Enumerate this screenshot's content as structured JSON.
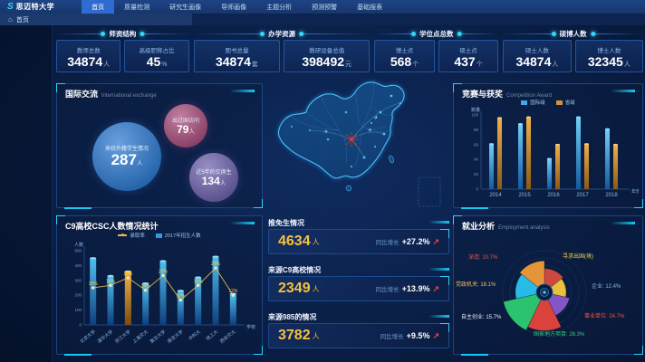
{
  "navbar": {
    "logo": "思迈特大学",
    "tabs": [
      {
        "label": "首页",
        "active": true
      },
      {
        "label": "质量检测",
        "active": false
      },
      {
        "label": "研究生画像",
        "active": false
      },
      {
        "label": "导师画像",
        "active": false
      },
      {
        "label": "主题分析",
        "active": false
      },
      {
        "label": "预测预警",
        "active": false
      },
      {
        "label": "基础报表",
        "active": false
      }
    ]
  },
  "breadcrumb": {
    "home": "首页"
  },
  "icons": {
    "home": "⌂",
    "logo": "S",
    "growth_up": "↗",
    "plane": "✈"
  },
  "colors": {
    "accent_cyan": "#19c8f0",
    "value_yellow": "#f7c23e",
    "alert_red": "#f0453c"
  },
  "kpi_groups": [
    {
      "title": "师资结构",
      "stats": [
        {
          "label": "教师总数",
          "value": "34874",
          "unit": "人"
        },
        {
          "label": "高级职称占比",
          "value": "45",
          "unit": "%"
        }
      ]
    },
    {
      "title": "办学资源",
      "stats": [
        {
          "label": "图书总量",
          "value": "34874",
          "unit": "套"
        },
        {
          "label": "教研设备总值",
          "value": "398492",
          "unit": "元"
        }
      ]
    },
    {
      "title": "学位点总数",
      "stats": [
        {
          "label": "博士点",
          "value": "568",
          "unit": "个"
        },
        {
          "label": "硕士点",
          "value": "437",
          "unit": "个"
        }
      ]
    },
    {
      "title": "硕博人数",
      "stats": [
        {
          "label": "硕士人数",
          "value": "34874",
          "unit": "人"
        },
        {
          "label": "博士人数",
          "value": "32345",
          "unit": "人"
        }
      ]
    }
  ],
  "intl_panel": {
    "title": "国际交流",
    "subtitle": "International exchange",
    "bubbles": [
      {
        "label": "来校外籍学生情况",
        "value": "287",
        "unit": "人",
        "color": "#2f7bd0"
      },
      {
        "label": "出过国访问",
        "value": "79",
        "unit": "人",
        "color": "#a84f7d"
      },
      {
        "label": "近5年的交换生",
        "value": "134",
        "unit": "人",
        "color": "#6f64ad"
      }
    ]
  },
  "center_stats": [
    {
      "label": "推免生情况",
      "value": "4634",
      "unit": "人",
      "growth_label": "同比增长",
      "growth": "+27.2%"
    },
    {
      "label": "来源C9高校情况",
      "value": "2349",
      "unit": "人",
      "growth_label": "同比增长",
      "growth": "+13.9%"
    },
    {
      "label": "来源985的情况",
      "value": "3782",
      "unit": "人",
      "growth_label": "同比增长",
      "growth": "+9.5%"
    }
  ],
  "chart_data": [
    {
      "id": "competition",
      "type": "bar",
      "title": "竞赛与获奖",
      "subtitle": "Competition Award",
      "categories": [
        "2014",
        "2015",
        "2016",
        "2017",
        "2018"
      ],
      "series": [
        {
          "name": "国际级",
          "color": "#3fa8e8",
          "values": [
            61,
            88,
            41,
            97,
            81
          ]
        },
        {
          "name": "省级",
          "color": "#d2913c",
          "values": [
            96,
            97,
            60,
            61,
            60
          ]
        }
      ],
      "xlabel": "年份",
      "ylabel": "数量",
      "ylim": [
        0,
        100
      ],
      "yticks": [
        0,
        20,
        40,
        60,
        80,
        100
      ],
      "legend_position": "top",
      "grid": false
    },
    {
      "id": "csc",
      "type": "bar+line",
      "title": "C9高校CSC人数情况统计",
      "categories": [
        "北京大学",
        "清华大学",
        "浙江大学",
        "上海交大",
        "复旦大学",
        "南京大学",
        "中科大",
        "哈工大",
        "西安交大"
      ],
      "bar_series": {
        "name": "2017年招生人数",
        "color": "#2f9be8",
        "highlight_color": "#e8a93c",
        "highlight_index": 2,
        "values": [
          450,
          330,
          360,
          280,
          430,
          230,
          320,
          460,
          210
        ]
      },
      "line_series": {
        "name": "录取率",
        "color": "#e8b84b",
        "unit": "%",
        "values": [
          15,
          16,
          19,
          14,
          20,
          10,
          16,
          23,
          12
        ]
      },
      "xlabel": "学校",
      "ylabel": "人数",
      "ylim": [
        0,
        500
      ],
      "yticks": [
        0,
        100,
        200,
        300,
        400,
        500
      ],
      "line_ylim": [
        0,
        30
      ],
      "legend_position": "top",
      "grid": false
    },
    {
      "id": "employment",
      "type": "rose",
      "title": "就业分析",
      "subtitle": "Employment analysis",
      "slices": [
        {
          "label": "深造",
          "value": 10.7,
          "color": "#d84b40",
          "label_color": "#e05a50"
        },
        {
          "label": "寻求出国(境)",
          "value": null,
          "color": "#f5c93c",
          "label_color": "#f5d03c"
        },
        {
          "label": "企业",
          "value": 12.4,
          "color": "#8a5ad0",
          "label_color": "#8fb8e8"
        },
        {
          "label": "事业单位",
          "value": 24.7,
          "color": "#e8453c",
          "label_color": "#f05a3c"
        },
        {
          "label": "国家地方项目",
          "value": 28.3,
          "color": "#2ecc71",
          "label_color": "#35d07a"
        },
        {
          "label": "自主创业",
          "value": 15.7,
          "color": "#29c4f0",
          "label_color": "#e8eef8"
        },
        {
          "label": "党政机关",
          "value": 18.1,
          "color": "#f29b38",
          "label_color": "#f0c060"
        }
      ]
    }
  ]
}
